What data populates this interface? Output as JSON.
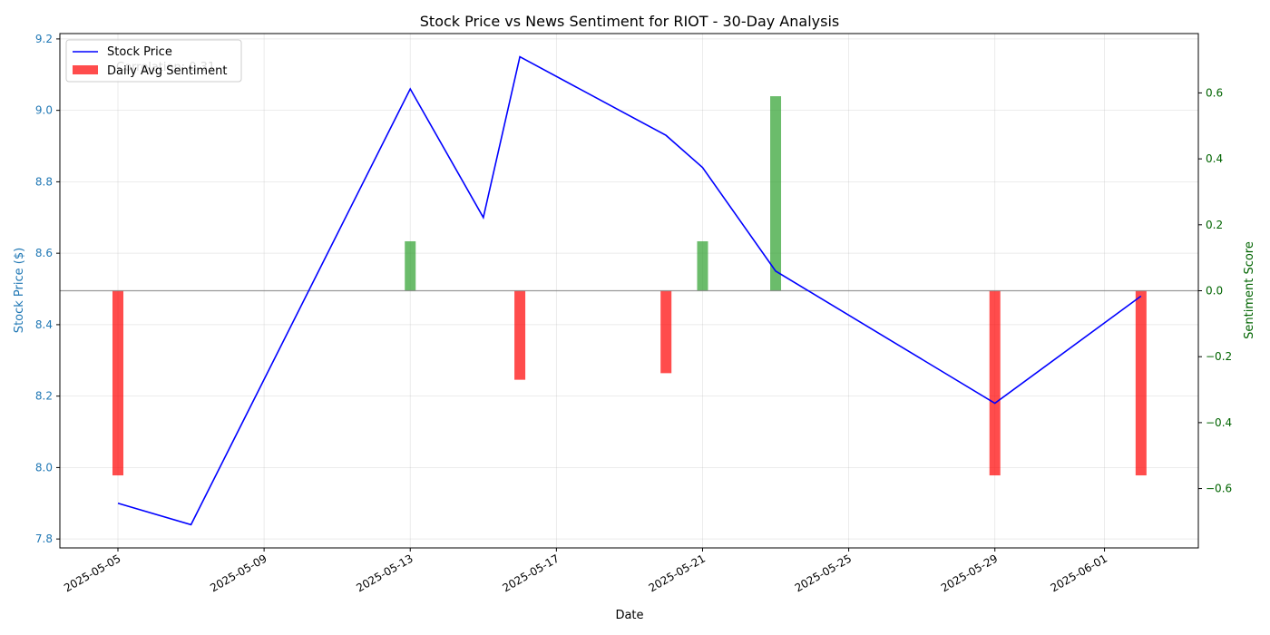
{
  "chart_data": {
    "type": "bar+line",
    "title": "Stock Price vs News Sentiment for RIOT - 30-Day Analysis",
    "xlabel": "Date",
    "ylabel_left": "Stock Price ($)",
    "ylabel_right": "Sentiment Score",
    "x_ticks": [
      "2025-05-05",
      "2025-05-09",
      "2025-05-13",
      "2025-05-17",
      "2025-05-21",
      "2025-05-25",
      "2025-05-29",
      "2025-06-01"
    ],
    "ylim_left": [
      7.775,
      9.215
    ],
    "ylim_right": [
      -0.78,
      0.78
    ],
    "y_ticks_left": [
      "7.8",
      "8.0",
      "8.2",
      "8.4",
      "8.6",
      "8.8",
      "9.0",
      "9.2"
    ],
    "y_ticks_right": [
      "−0.6",
      "−0.4",
      "−0.2",
      "0.0",
      "0.2",
      "0.4",
      "0.6"
    ],
    "grid": true,
    "legend_position": "top-left",
    "annotation": "Correlation: 0.31",
    "series": [
      {
        "name": "Stock Price",
        "type": "line",
        "axis": "left",
        "color": "#0000ff",
        "x": [
          "2025-05-05",
          "2025-05-07",
          "2025-05-13",
          "2025-05-15",
          "2025-05-16",
          "2025-05-20",
          "2025-05-21",
          "2025-05-23",
          "2025-05-29",
          "2025-06-02"
        ],
        "values": [
          7.9,
          7.84,
          9.06,
          8.7,
          9.15,
          8.93,
          8.84,
          8.55,
          8.18,
          8.48
        ]
      },
      {
        "name": "Daily Avg Sentiment",
        "type": "bar",
        "axis": "right",
        "positive_color": "#2ca02c",
        "negative_color": "#ff0000",
        "x": [
          "2025-05-05",
          "2025-05-13",
          "2025-05-16",
          "2025-05-20",
          "2025-05-21",
          "2025-05-23",
          "2025-05-29",
          "2025-06-02"
        ],
        "values": [
          -0.56,
          0.15,
          -0.27,
          -0.25,
          0.15,
          0.59,
          -0.56,
          -0.56
        ]
      }
    ]
  }
}
